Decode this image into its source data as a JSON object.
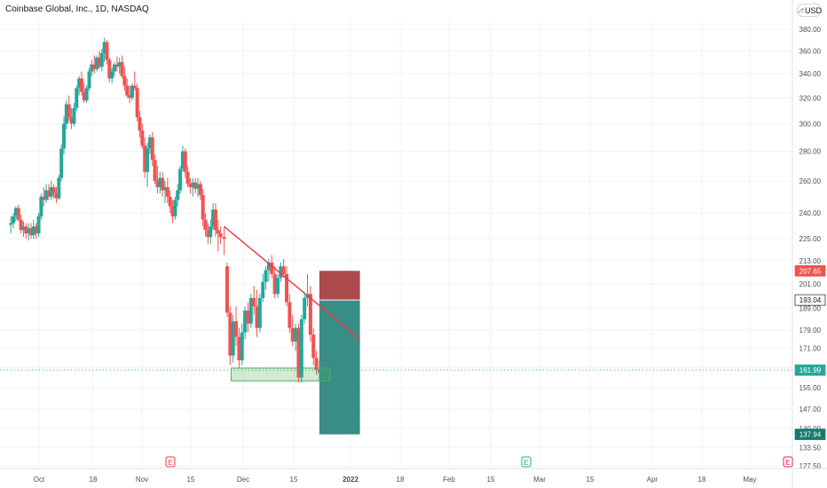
{
  "header": {
    "title": "Coinbase Global, Inc., 1D, NASDAQ",
    "currency": "USD",
    "lock_icon": "lock-icon"
  },
  "colors": {
    "up": "#26a69a",
    "down": "#ef5350",
    "trendline": "#f23645",
    "stop_zone": "#9e2a2f",
    "target_zone": "#157a6e",
    "support_zone": "#4caf50",
    "grid": "#f0f3fa",
    "axis_text": "#4a4e59",
    "price_line": "#26a69a"
  },
  "chart_data": {
    "type": "candlestick",
    "symbol": "Coinbase Global, Inc.",
    "interval": "1D",
    "exchange": "NASDAQ",
    "ylim": [
      125,
      400
    ],
    "y_scale": "log",
    "y_ticks": [
      "380.00",
      "360.00",
      "340.00",
      "320.00",
      "300.00",
      "280.00",
      "260.00",
      "240.00",
      "225.00",
      "213.00",
      "201.00",
      "189.00",
      "179.00",
      "171.00",
      "163.00",
      "155.00",
      "147.00",
      "140.00",
      "133.50",
      "127.50"
    ],
    "x_ticks": [
      "Oct",
      "18",
      "Nov",
      "15",
      "Dec",
      "15",
      "2022",
      "18",
      "Feb",
      "15",
      "Mar",
      "15",
      "Apr",
      "18",
      "May"
    ],
    "price_badges": [
      {
        "label": "207.65",
        "value": 207.65,
        "color": "#ef5350"
      },
      {
        "label": "193.04",
        "value": 193.04,
        "color": "#ffffff"
      },
      {
        "label": "161.99",
        "value": 161.99,
        "color": "#26a69a"
      },
      {
        "label": "137.94",
        "value": 137.94,
        "color": "#157a6e"
      }
    ],
    "last_price": 161.99,
    "trendline": {
      "start": {
        "date": "2022-01-14",
        "price": 232
      },
      "end": {
        "date": "2022-04-01",
        "price": 175
      }
    },
    "support_zone": {
      "start": "2022-01-18",
      "end": "2022-03-15",
      "low": 157,
      "high": 161
    },
    "position": {
      "entry": 193.04,
      "stop": 207.65,
      "target": 137.94,
      "start": "2022-03-09",
      "end": "2022-04-01"
    },
    "earnings_markers": [
      "Nov",
      "Feb",
      "May"
    ],
    "earnings_label": "E",
    "candles": [
      {
        "o": 233,
        "h": 238,
        "l": 228,
        "c": 234
      },
      {
        "o": 234,
        "h": 240,
        "l": 231,
        "c": 238
      },
      {
        "o": 238,
        "h": 244,
        "l": 235,
        "c": 243
      },
      {
        "o": 243,
        "h": 245,
        "l": 235,
        "c": 236
      },
      {
        "o": 236,
        "h": 239,
        "l": 228,
        "c": 230
      },
      {
        "o": 230,
        "h": 235,
        "l": 226,
        "c": 232
      },
      {
        "o": 232,
        "h": 234,
        "l": 225,
        "c": 228
      },
      {
        "o": 228,
        "h": 234,
        "l": 224,
        "c": 231
      },
      {
        "o": 231,
        "h": 234,
        "l": 225,
        "c": 227
      },
      {
        "o": 227,
        "h": 236,
        "l": 225,
        "c": 232
      },
      {
        "o": 232,
        "h": 234,
        "l": 225,
        "c": 228
      },
      {
        "o": 228,
        "h": 240,
        "l": 226,
        "c": 238
      },
      {
        "o": 238,
        "h": 252,
        "l": 236,
        "c": 250
      },
      {
        "o": 250,
        "h": 256,
        "l": 244,
        "c": 248
      },
      {
        "o": 248,
        "h": 258,
        "l": 246,
        "c": 254
      },
      {
        "o": 254,
        "h": 258,
        "l": 248,
        "c": 250
      },
      {
        "o": 250,
        "h": 260,
        "l": 248,
        "c": 256
      },
      {
        "o": 256,
        "h": 258,
        "l": 249,
        "c": 252
      },
      {
        "o": 252,
        "h": 256,
        "l": 246,
        "c": 249
      },
      {
        "o": 249,
        "h": 264,
        "l": 248,
        "c": 262
      },
      {
        "o": 262,
        "h": 285,
        "l": 260,
        "c": 282
      },
      {
        "o": 282,
        "h": 306,
        "l": 278,
        "c": 300
      },
      {
        "o": 300,
        "h": 318,
        "l": 296,
        "c": 315
      },
      {
        "o": 315,
        "h": 322,
        "l": 302,
        "c": 305
      },
      {
        "o": 305,
        "h": 312,
        "l": 296,
        "c": 300
      },
      {
        "o": 300,
        "h": 316,
        "l": 298,
        "c": 312
      },
      {
        "o": 312,
        "h": 330,
        "l": 310,
        "c": 328
      },
      {
        "o": 328,
        "h": 338,
        "l": 322,
        "c": 336
      },
      {
        "o": 336,
        "h": 342,
        "l": 322,
        "c": 325
      },
      {
        "o": 325,
        "h": 332,
        "l": 316,
        "c": 318
      },
      {
        "o": 318,
        "h": 330,
        "l": 316,
        "c": 328
      },
      {
        "o": 328,
        "h": 345,
        "l": 326,
        "c": 342
      },
      {
        "o": 342,
        "h": 352,
        "l": 338,
        "c": 348
      },
      {
        "o": 348,
        "h": 356,
        "l": 340,
        "c": 344
      },
      {
        "o": 344,
        "h": 356,
        "l": 342,
        "c": 354
      },
      {
        "o": 354,
        "h": 360,
        "l": 344,
        "c": 346
      },
      {
        "o": 346,
        "h": 362,
        "l": 342,
        "c": 358
      },
      {
        "o": 358,
        "h": 372,
        "l": 350,
        "c": 368
      },
      {
        "o": 368,
        "h": 370,
        "l": 348,
        "c": 352
      },
      {
        "o": 352,
        "h": 354,
        "l": 333,
        "c": 336
      },
      {
        "o": 336,
        "h": 345,
        "l": 332,
        "c": 342
      },
      {
        "o": 342,
        "h": 350,
        "l": 338,
        "c": 348
      },
      {
        "o": 348,
        "h": 355,
        "l": 342,
        "c": 346
      },
      {
        "o": 346,
        "h": 354,
        "l": 340,
        "c": 350
      },
      {
        "o": 350,
        "h": 356,
        "l": 336,
        "c": 338
      },
      {
        "o": 338,
        "h": 346,
        "l": 326,
        "c": 330
      },
      {
        "o": 330,
        "h": 336,
        "l": 320,
        "c": 322
      },
      {
        "o": 322,
        "h": 330,
        "l": 316,
        "c": 320
      },
      {
        "o": 320,
        "h": 332,
        "l": 318,
        "c": 330
      },
      {
        "o": 330,
        "h": 342,
        "l": 326,
        "c": 328
      },
      {
        "o": 328,
        "h": 332,
        "l": 302,
        "c": 305
      },
      {
        "o": 305,
        "h": 310,
        "l": 290,
        "c": 295
      },
      {
        "o": 295,
        "h": 300,
        "l": 282,
        "c": 284
      },
      {
        "o": 284,
        "h": 290,
        "l": 262,
        "c": 266
      },
      {
        "o": 266,
        "h": 286,
        "l": 256,
        "c": 282
      },
      {
        "o": 282,
        "h": 292,
        "l": 278,
        "c": 290
      },
      {
        "o": 290,
        "h": 294,
        "l": 270,
        "c": 274
      },
      {
        "o": 274,
        "h": 278,
        "l": 258,
        "c": 260
      },
      {
        "o": 260,
        "h": 270,
        "l": 252,
        "c": 256
      },
      {
        "o": 256,
        "h": 266,
        "l": 252,
        "c": 262
      },
      {
        "o": 262,
        "h": 266,
        "l": 250,
        "c": 254
      },
      {
        "o": 254,
        "h": 260,
        "l": 246,
        "c": 256
      },
      {
        "o": 256,
        "h": 262,
        "l": 246,
        "c": 250
      },
      {
        "o": 250,
        "h": 254,
        "l": 240,
        "c": 244
      },
      {
        "o": 244,
        "h": 248,
        "l": 234,
        "c": 238
      },
      {
        "o": 238,
        "h": 250,
        "l": 236,
        "c": 248
      },
      {
        "o": 248,
        "h": 258,
        "l": 244,
        "c": 254
      },
      {
        "o": 254,
        "h": 270,
        "l": 252,
        "c": 268
      },
      {
        "o": 268,
        "h": 284,
        "l": 266,
        "c": 280
      },
      {
        "o": 280,
        "h": 282,
        "l": 262,
        "c": 266
      },
      {
        "o": 266,
        "h": 270,
        "l": 256,
        "c": 258
      },
      {
        "o": 258,
        "h": 262,
        "l": 252,
        "c": 256
      },
      {
        "o": 256,
        "h": 262,
        "l": 250,
        "c": 259
      },
      {
        "o": 259,
        "h": 262,
        "l": 252,
        "c": 255
      },
      {
        "o": 255,
        "h": 262,
        "l": 250,
        "c": 258
      },
      {
        "o": 258,
        "h": 260,
        "l": 248,
        "c": 251
      },
      {
        "o": 251,
        "h": 255,
        "l": 232,
        "c": 236
      },
      {
        "o": 236,
        "h": 240,
        "l": 226,
        "c": 230
      },
      {
        "o": 230,
        "h": 234,
        "l": 222,
        "c": 226
      },
      {
        "o": 226,
        "h": 236,
        "l": 222,
        "c": 232
      },
      {
        "o": 232,
        "h": 246,
        "l": 230,
        "c": 242
      },
      {
        "o": 242,
        "h": 246,
        "l": 226,
        "c": 230
      },
      {
        "o": 230,
        "h": 236,
        "l": 218,
        "c": 228
      },
      {
        "o": 228,
        "h": 232,
        "l": 222,
        "c": 226
      },
      {
        "o": 226,
        "h": 232,
        "l": 216,
        "c": 225
      },
      {
        "o": 210,
        "h": 212,
        "l": 185,
        "c": 187
      },
      {
        "o": 187,
        "h": 190,
        "l": 164,
        "c": 168
      },
      {
        "o": 168,
        "h": 186,
        "l": 165,
        "c": 183
      },
      {
        "o": 183,
        "h": 190,
        "l": 172,
        "c": 176
      },
      {
        "o": 176,
        "h": 180,
        "l": 163,
        "c": 166
      },
      {
        "o": 166,
        "h": 182,
        "l": 164,
        "c": 178
      },
      {
        "o": 178,
        "h": 190,
        "l": 175,
        "c": 188
      },
      {
        "o": 188,
        "h": 192,
        "l": 178,
        "c": 182
      },
      {
        "o": 182,
        "h": 196,
        "l": 180,
        "c": 194
      },
      {
        "o": 194,
        "h": 200,
        "l": 186,
        "c": 190
      },
      {
        "o": 190,
        "h": 198,
        "l": 176,
        "c": 180
      },
      {
        "o": 180,
        "h": 196,
        "l": 178,
        "c": 194
      },
      {
        "o": 194,
        "h": 206,
        "l": 192,
        "c": 202
      },
      {
        "o": 202,
        "h": 210,
        "l": 198,
        "c": 208
      },
      {
        "o": 208,
        "h": 214,
        "l": 202,
        "c": 212
      },
      {
        "o": 212,
        "h": 216,
        "l": 204,
        "c": 206
      },
      {
        "o": 206,
        "h": 210,
        "l": 194,
        "c": 196
      },
      {
        "o": 196,
        "h": 206,
        "l": 194,
        "c": 204
      },
      {
        "o": 204,
        "h": 212,
        "l": 202,
        "c": 210
      },
      {
        "o": 210,
        "h": 214,
        "l": 204,
        "c": 206
      },
      {
        "o": 206,
        "h": 210,
        "l": 190,
        "c": 192
      },
      {
        "o": 192,
        "h": 196,
        "l": 178,
        "c": 180
      },
      {
        "o": 180,
        "h": 186,
        "l": 172,
        "c": 174
      },
      {
        "o": 174,
        "h": 182,
        "l": 170,
        "c": 180
      },
      {
        "o": 180,
        "h": 182,
        "l": 157,
        "c": 159
      },
      {
        "o": 159,
        "h": 186,
        "l": 157,
        "c": 184
      },
      {
        "o": 184,
        "h": 196,
        "l": 182,
        "c": 194
      },
      {
        "o": 194,
        "h": 206,
        "l": 190,
        "c": 196
      },
      {
        "o": 196,
        "h": 200,
        "l": 174,
        "c": 177
      },
      {
        "o": 177,
        "h": 180,
        "l": 164,
        "c": 167
      },
      {
        "o": 167,
        "h": 170,
        "l": 160,
        "c": 162
      },
      {
        "o": 161,
        "h": 166,
        "l": 158,
        "c": 162
      }
    ]
  }
}
